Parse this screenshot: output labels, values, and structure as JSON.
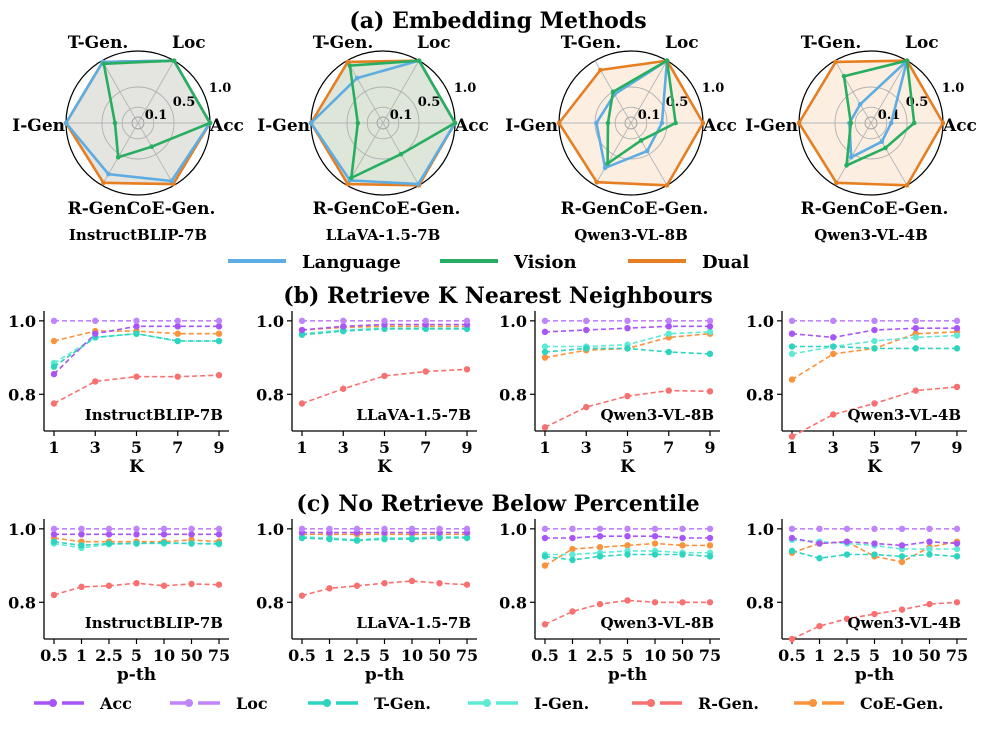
{
  "section_titles": {
    "a": "(a) Embedding Methods",
    "b": "(b) Retrieve K Nearest Neighbours",
    "c": "(c) No Retrieve Below Percentile"
  },
  "colors": {
    "Language": "#5DADE2",
    "Vision": "#27AE60",
    "Dual": "#E67E22",
    "Acc": "#A855F7",
    "Loc": "#C084FC",
    "T-Gen.": "#2DD4BF",
    "I-Gen.": "#5EEAD4",
    "R-Gen.": "#F87171",
    "CoE-Gen.": "#FB923C"
  },
  "chart_data": [
    {
      "id": "radar",
      "type": "radar",
      "title": "(a) Embedding Methods",
      "axes": [
        "Loc",
        "Acc",
        "CoE-Gen.",
        "R-Gen.",
        "I-Gen",
        "T-Gen."
      ],
      "ring_labels": [
        "0.1",
        "0.5",
        "1.0"
      ],
      "legend": [
        "Language",
        "Vision",
        "Dual"
      ],
      "models": [
        {
          "name": "InstructBLIP-7B",
          "series": [
            {
              "name": "Language",
              "values": [
                1.0,
                1.0,
                0.93,
                0.82,
                1.0,
                0.98
              ]
            },
            {
              "name": "Vision",
              "values": [
                1.0,
                1.0,
                0.38,
                0.55,
                0.32,
                0.95
              ]
            },
            {
              "name": "Dual",
              "values": [
                1.0,
                1.0,
                0.98,
                0.96,
                1.0,
                0.98
              ]
            }
          ]
        },
        {
          "name": "LLaVA-1.5-7B",
          "series": [
            {
              "name": "Language",
              "values": [
                1.0,
                1.0,
                0.98,
                0.92,
                1.0,
                0.72
              ]
            },
            {
              "name": "Vision",
              "values": [
                1.0,
                1.0,
                0.5,
                0.88,
                0.35,
                0.92
              ]
            },
            {
              "name": "Dual",
              "values": [
                1.0,
                1.0,
                1.0,
                0.98,
                1.0,
                0.98
              ]
            }
          ]
        },
        {
          "name": "Qwen3-VL-8B",
          "series": [
            {
              "name": "Language",
              "values": [
                1.0,
                0.43,
                0.45,
                0.72,
                0.48,
                0.46
              ]
            },
            {
              "name": "Vision",
              "values": [
                1.0,
                0.62,
                0.28,
                0.65,
                0.32,
                0.5
              ]
            },
            {
              "name": "Dual",
              "values": [
                1.0,
                1.0,
                1.0,
                0.95,
                1.0,
                0.85
              ]
            }
          ]
        },
        {
          "name": "Qwen3-VL-4B",
          "series": [
            {
              "name": "Language",
              "values": [
                1.0,
                0.28,
                0.3,
                0.55,
                0.3,
                0.3
              ]
            },
            {
              "name": "Vision",
              "values": [
                1.0,
                0.6,
                0.4,
                0.68,
                0.28,
                0.75
              ]
            },
            {
              "name": "Dual",
              "values": [
                1.0,
                1.0,
                1.0,
                0.96,
                1.0,
                0.98
              ]
            }
          ]
        }
      ]
    },
    {
      "id": "knn",
      "type": "line",
      "title": "(b) Retrieve K Nearest Neighbours",
      "xlabel": "K",
      "x": [
        "1",
        "3",
        "5",
        "7",
        "9"
      ],
      "ylim": [
        0.7,
        1.005
      ],
      "yticks": [
        "0.8",
        "1.0"
      ],
      "models": [
        {
          "name": "InstructBLIP-7B",
          "series": [
            {
              "name": "Acc",
              "values": [
                0.855,
                0.965,
                0.985,
                0.985,
                0.985
              ]
            },
            {
              "name": "Loc",
              "values": [
                1.0,
                1.0,
                1.0,
                1.0,
                1.0
              ]
            },
            {
              "name": "T-Gen.",
              "values": [
                0.875,
                0.955,
                0.965,
                0.945,
                0.945
              ]
            },
            {
              "name": "I-Gen.",
              "values": [
                0.885,
                0.955,
                0.965,
                0.945,
                0.945
              ]
            },
            {
              "name": "R-Gen.",
              "values": [
                0.775,
                0.835,
                0.848,
                0.848,
                0.852
              ]
            },
            {
              "name": "CoE-Gen.",
              "values": [
                0.945,
                0.972,
                0.972,
                0.965,
                0.965
              ]
            }
          ]
        },
        {
          "name": "LLaVA-1.5-7B",
          "series": [
            {
              "name": "Acc",
              "values": [
                0.975,
                0.985,
                0.99,
                0.99,
                0.99
              ]
            },
            {
              "name": "Loc",
              "values": [
                1.0,
                1.0,
                1.0,
                1.0,
                1.0
              ]
            },
            {
              "name": "T-Gen.",
              "values": [
                0.962,
                0.972,
                0.978,
                0.978,
                0.978
              ]
            },
            {
              "name": "I-Gen.",
              "values": [
                0.965,
                0.975,
                0.98,
                0.98,
                0.98
              ]
            },
            {
              "name": "R-Gen.",
              "values": [
                0.775,
                0.815,
                0.85,
                0.862,
                0.868
              ]
            },
            {
              "name": "CoE-Gen.",
              "values": [
                0.975,
                0.982,
                0.985,
                0.985,
                0.985
              ]
            }
          ]
        },
        {
          "name": "Qwen3-VL-8B",
          "series": [
            {
              "name": "Acc",
              "values": [
                0.97,
                0.975,
                0.98,
                0.985,
                0.985
              ]
            },
            {
              "name": "Loc",
              "values": [
                1.0,
                1.0,
                1.0,
                1.0,
                1.0
              ]
            },
            {
              "name": "T-Gen.",
              "values": [
                0.915,
                0.925,
                0.925,
                0.915,
                0.91
              ]
            },
            {
              "name": "I-Gen.",
              "values": [
                0.93,
                0.93,
                0.935,
                0.965,
                0.97
              ]
            },
            {
              "name": "R-Gen.",
              "values": [
                0.71,
                0.765,
                0.795,
                0.81,
                0.808
              ]
            },
            {
              "name": "CoE-Gen.",
              "values": [
                0.9,
                0.92,
                0.925,
                0.955,
                0.965
              ]
            }
          ]
        },
        {
          "name": "Qwen3-VL-4B",
          "series": [
            {
              "name": "Acc",
              "values": [
                0.965,
                0.955,
                0.975,
                0.98,
                0.98
              ]
            },
            {
              "name": "Loc",
              "values": [
                1.0,
                1.0,
                1.0,
                1.0,
                1.0
              ]
            },
            {
              "name": "T-Gen.",
              "values": [
                0.93,
                0.93,
                0.925,
                0.925,
                0.925
              ]
            },
            {
              "name": "I-Gen.",
              "values": [
                0.91,
                0.93,
                0.945,
                0.955,
                0.96
              ]
            },
            {
              "name": "R-Gen.",
              "values": [
                0.685,
                0.745,
                0.775,
                0.81,
                0.82
              ]
            },
            {
              "name": "CoE-Gen.",
              "values": [
                0.84,
                0.91,
                0.925,
                0.965,
                0.97
              ]
            }
          ]
        }
      ]
    },
    {
      "id": "percentile",
      "type": "line",
      "title": "(c) No Retrieve Below Percentile",
      "xlabel": "p-th",
      "x": [
        "0.5",
        "1",
        "2.5",
        "5",
        "10",
        "50",
        "75"
      ],
      "ylim": [
        0.7,
        1.005
      ],
      "yticks": [
        "0.8",
        "1.0"
      ],
      "models": [
        {
          "name": "InstructBLIP-7B",
          "series": [
            {
              "name": "Acc",
              "values": [
                0.985,
                0.985,
                0.985,
                0.985,
                0.985,
                0.985,
                0.985
              ]
            },
            {
              "name": "Loc",
              "values": [
                1.0,
                1.0,
                1.0,
                1.0,
                1.0,
                1.0,
                1.0
              ]
            },
            {
              "name": "T-Gen.",
              "values": [
                0.965,
                0.955,
                0.96,
                0.96,
                0.962,
                0.96,
                0.96
              ]
            },
            {
              "name": "I-Gen.",
              "values": [
                0.96,
                0.948,
                0.958,
                0.96,
                0.96,
                0.96,
                0.958
              ]
            },
            {
              "name": "R-Gen.",
              "values": [
                0.82,
                0.842,
                0.845,
                0.852,
                0.845,
                0.85,
                0.848
              ]
            },
            {
              "name": "CoE-Gen.",
              "values": [
                0.975,
                0.965,
                0.965,
                0.965,
                0.965,
                0.97,
                0.965
              ]
            }
          ]
        },
        {
          "name": "LLaVA-1.5-7B",
          "series": [
            {
              "name": "Acc",
              "values": [
                0.99,
                0.99,
                0.99,
                0.99,
                0.99,
                0.99,
                0.99
              ]
            },
            {
              "name": "Loc",
              "values": [
                1.0,
                1.0,
                1.0,
                1.0,
                1.0,
                1.0,
                1.0
              ]
            },
            {
              "name": "T-Gen.",
              "values": [
                0.975,
                0.972,
                0.968,
                0.972,
                0.972,
                0.975,
                0.975
              ]
            },
            {
              "name": "I-Gen.",
              "values": [
                0.978,
                0.975,
                0.97,
                0.975,
                0.975,
                0.978,
                0.978
              ]
            },
            {
              "name": "R-Gen.",
              "values": [
                0.818,
                0.838,
                0.845,
                0.852,
                0.858,
                0.852,
                0.848
              ]
            },
            {
              "name": "CoE-Gen.",
              "values": [
                0.985,
                0.985,
                0.985,
                0.985,
                0.985,
                0.985,
                0.985
              ]
            }
          ]
        },
        {
          "name": "Qwen3-VL-8B",
          "series": [
            {
              "name": "Acc",
              "values": [
                0.975,
                0.975,
                0.98,
                0.98,
                0.98,
                0.975,
                0.975
              ]
            },
            {
              "name": "Loc",
              "values": [
                1.0,
                1.0,
                1.0,
                1.0,
                1.0,
                1.0,
                1.0
              ]
            },
            {
              "name": "T-Gen.",
              "values": [
                0.925,
                0.915,
                0.925,
                0.93,
                0.93,
                0.93,
                0.925
              ]
            },
            {
              "name": "I-Gen.",
              "values": [
                0.93,
                0.93,
                0.935,
                0.94,
                0.94,
                0.935,
                0.935
              ]
            },
            {
              "name": "R-Gen.",
              "values": [
                0.74,
                0.775,
                0.795,
                0.805,
                0.8,
                0.8,
                0.8
              ]
            },
            {
              "name": "CoE-Gen.",
              "values": [
                0.9,
                0.945,
                0.95,
                0.955,
                0.96,
                0.955,
                0.955
              ]
            }
          ]
        },
        {
          "name": "Qwen3-VL-4B",
          "series": [
            {
              "name": "Acc",
              "values": [
                0.975,
                0.96,
                0.965,
                0.96,
                0.955,
                0.965,
                0.96
              ]
            },
            {
              "name": "Loc",
              "values": [
                1.0,
                1.0,
                1.0,
                1.0,
                1.0,
                1.0,
                1.0
              ]
            },
            {
              "name": "T-Gen.",
              "values": [
                0.94,
                0.92,
                0.93,
                0.93,
                0.925,
                0.93,
                0.925
              ]
            },
            {
              "name": "I-Gen.",
              "values": [
                0.97,
                0.965,
                0.96,
                0.955,
                0.945,
                0.945,
                0.945
              ]
            },
            {
              "name": "R-Gen.",
              "values": [
                0.7,
                0.735,
                0.755,
                0.768,
                0.78,
                0.795,
                0.8
              ]
            },
            {
              "name": "CoE-Gen.",
              "values": [
                0.935,
                0.96,
                0.965,
                0.925,
                0.91,
                0.95,
                0.965
              ]
            }
          ]
        }
      ]
    }
  ],
  "bottom_legend": [
    "Acc",
    "Loc",
    "T-Gen.",
    "I-Gen.",
    "R-Gen.",
    "CoE-Gen."
  ]
}
